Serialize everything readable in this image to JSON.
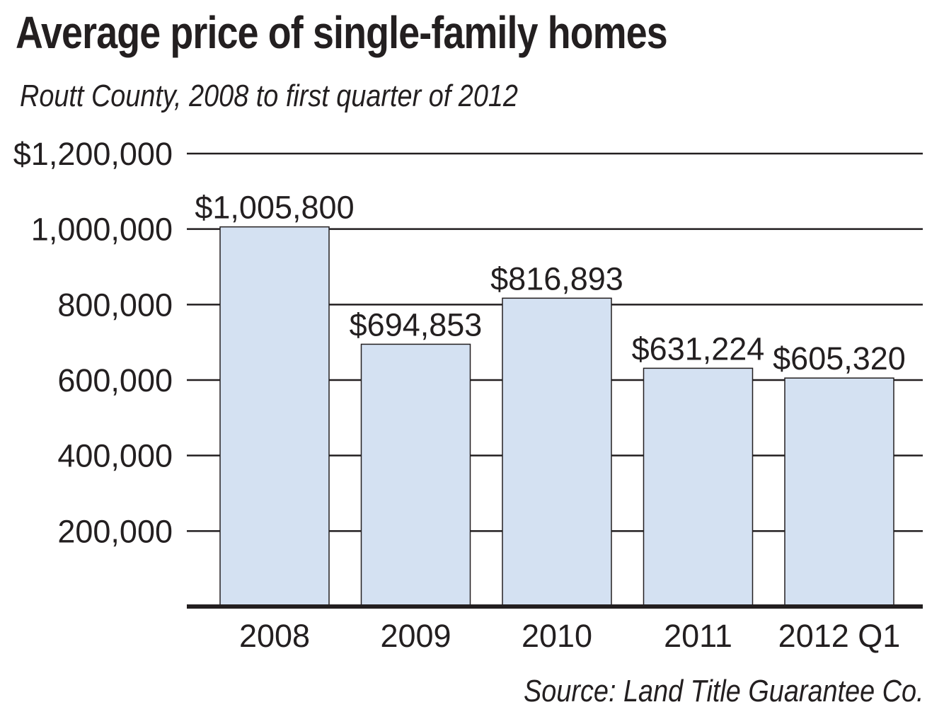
{
  "chart_data": {
    "type": "bar",
    "title": "Average price of single-family homes",
    "subtitle": "Routt County, 2008 to first quarter of 2012",
    "source": "Source: Land Title Guarantee Co.",
    "xlabel": "",
    "ylabel": "",
    "categories": [
      "2008",
      "2009",
      "2010",
      "2011",
      "2012 Q1"
    ],
    "values": [
      1005800,
      694853,
      816893,
      631224,
      605320
    ],
    "data_labels": [
      "$1,005,800",
      "$694,853",
      "$816,893",
      "$631,224",
      "$605,320"
    ],
    "ylim": [
      0,
      1200000
    ],
    "yticks": [
      200000,
      400000,
      600000,
      800000,
      1000000,
      1200000
    ],
    "ytick_labels": [
      "200,000",
      "400,000",
      "600,000",
      "800,000",
      "1,000,000",
      "$1,200,000"
    ],
    "grid": true,
    "legend": "none",
    "colors": {
      "bar_fill": "#d4e1f2",
      "bar_stroke": "#231f20",
      "grid": "#231f20",
      "text": "#231f20"
    }
  }
}
